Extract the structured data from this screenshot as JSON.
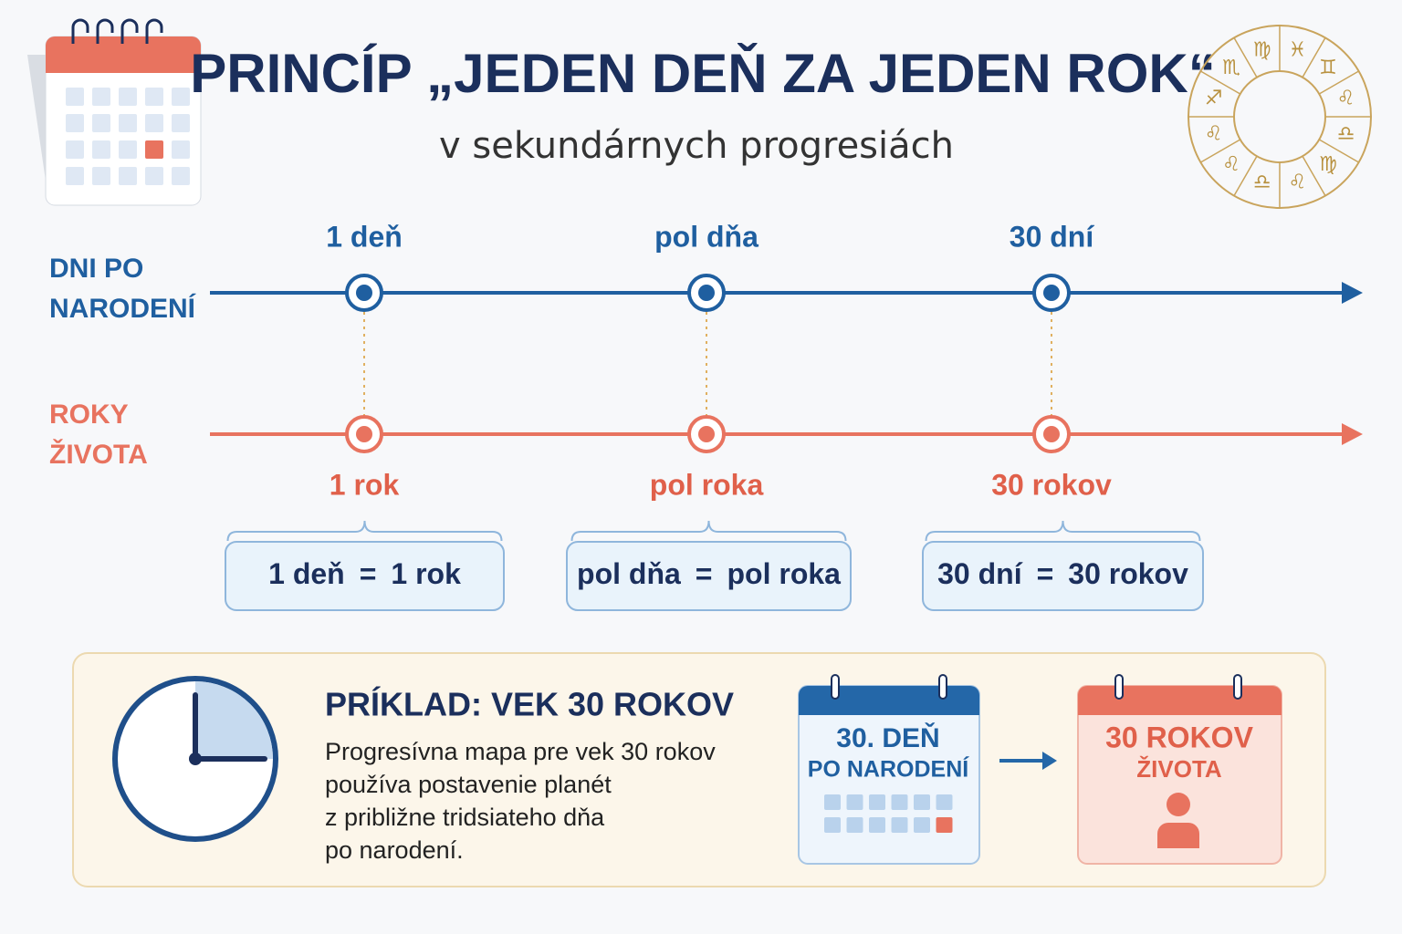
{
  "header": {
    "title": "PRINCÍP „JEDEN DEŇ ZA JEDEN ROK“",
    "subtitle": "v sekundárnych progresiách"
  },
  "zodiac": [
    "♓",
    "♊",
    "♌",
    "♎",
    "♍",
    "♌",
    "♎",
    "♌",
    "♌",
    "♐",
    "♏",
    "♍"
  ],
  "timeline": {
    "days_label": [
      "DNI PO",
      "NARODENÍ"
    ],
    "years_label": [
      "ROKY",
      "ŽIVOTA"
    ],
    "points": [
      {
        "day": "1 deň",
        "year": "1 rok"
      },
      {
        "day": "pol dňa",
        "year": "pol roka"
      },
      {
        "day": "30 dní",
        "year": "30 rokov"
      }
    ]
  },
  "equations": [
    {
      "left": "1 deň",
      "sign": "=",
      "right": "1 rok"
    },
    {
      "left": "pol dňa",
      "sign": "=",
      "right": "pol roka"
    },
    {
      "left": "30 dní",
      "sign": "=",
      "right": "30 rokov"
    }
  ],
  "example": {
    "title": "PRÍKLAD: VEK 30 ROKOV",
    "text": [
      "Progresívna mapa pre vek 30 rokov",
      "používa postavenie planét",
      "z približne tridsiateho dňa",
      "po narodení."
    ],
    "calendar_from": [
      "30. DEŇ",
      "PO NARODENÍ"
    ],
    "calendar_to": [
      "30 ROKOV",
      "ŽIVOTA"
    ]
  }
}
